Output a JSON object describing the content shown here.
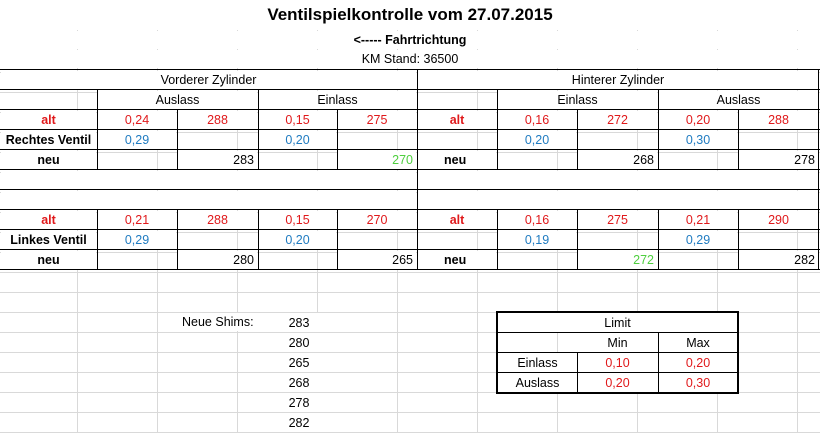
{
  "title": "Ventilspielkontrolle vom 27.07.2015",
  "direction": "<----- Fahrtrichtung",
  "km_stand": "KM Stand: 36500",
  "front": {
    "header": "Vorderer Zylinder",
    "col1": "Auslass",
    "col2": "Einlass"
  },
  "rear": {
    "header": "Hinterer Zylinder",
    "col1": "Einlass",
    "col2": "Auslass"
  },
  "labels": {
    "alt": "alt",
    "neu": "neu",
    "rechtes": "Rechtes Ventil",
    "linkes": "Linkes Ventil"
  },
  "right_valve": {
    "front_alt": [
      "0,24",
      "288",
      "0,15",
      "275"
    ],
    "front_measure": [
      "0,29",
      "0,20"
    ],
    "front_neu": [
      "283",
      "270"
    ],
    "rear_alt": [
      "0,16",
      "272",
      "0,20",
      "288"
    ],
    "rear_measure": [
      "0,20",
      "0,30"
    ],
    "rear_neu": [
      "268",
      "278"
    ]
  },
  "left_valve": {
    "front_alt": [
      "0,21",
      "288",
      "0,15",
      "270"
    ],
    "front_measure": [
      "0,29",
      "0,20"
    ],
    "front_neu": [
      "280",
      "265"
    ],
    "rear_alt": [
      "0,16",
      "275",
      "0,21",
      "290"
    ],
    "rear_measure": [
      "0,19",
      "0,29"
    ],
    "rear_neu": [
      "272",
      "282"
    ]
  },
  "shims": {
    "label": "Neue Shims:",
    "values": [
      "283",
      "280",
      "265",
      "268",
      "278",
      "282"
    ]
  },
  "limit": {
    "title": "Limit",
    "min": "Min",
    "max": "Max",
    "rows": [
      {
        "label": "Einlass",
        "min": "0,10",
        "max": "0,20"
      },
      {
        "label": "Auslass",
        "min": "0,20",
        "max": "0,30"
      }
    ]
  },
  "colors": {
    "alt_red": "#e0191b",
    "measure_blue": "#1f7bc1",
    "highlight_green": "#4fcf3f"
  }
}
